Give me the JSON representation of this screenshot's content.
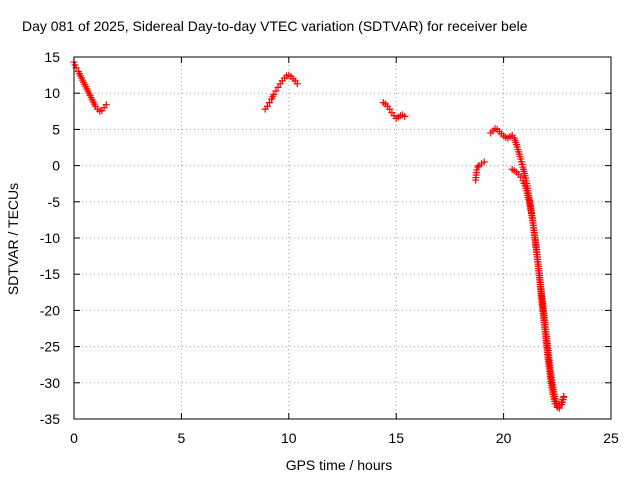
{
  "chart_data": {
    "type": "scatter",
    "title": "Day 081 of 2025, Sidereal Day-to-day VTEC variation (SDTVAR) for receiver bele",
    "xlabel": "GPS time / hours",
    "ylabel": "SDTVAR / TECUs",
    "xlim": [
      0,
      25
    ],
    "ylim": [
      -35,
      15
    ],
    "xticks": [
      0,
      5,
      10,
      15,
      20,
      25
    ],
    "yticks": [
      -35,
      -30,
      -25,
      -20,
      -15,
      -10,
      -5,
      0,
      5,
      10,
      15
    ],
    "grid": true,
    "marker": "plus",
    "colors": {
      "series": "#ff0000",
      "grid": "#a0a0a0",
      "axis": "#000000"
    },
    "series": [
      {
        "name": "SDTVAR",
        "segments": [
          [
            [
              0.0,
              14.3
            ],
            [
              0.05,
              13.9
            ],
            [
              0.1,
              13.5
            ],
            [
              0.2,
              13.0
            ],
            [
              0.3,
              12.4
            ],
            [
              0.4,
              11.8
            ],
            [
              0.5,
              11.2
            ],
            [
              0.6,
              10.6
            ],
            [
              0.7,
              10.0
            ],
            [
              0.8,
              9.4
            ],
            [
              0.9,
              8.8
            ],
            [
              1.0,
              8.2
            ],
            [
              1.1,
              7.8
            ],
            [
              1.2,
              7.5
            ],
            [
              1.3,
              7.6
            ],
            [
              1.4,
              8.0
            ],
            [
              1.5,
              8.4
            ]
          ],
          [
            [
              8.9,
              7.8
            ],
            [
              9.0,
              8.2
            ],
            [
              9.1,
              8.7
            ],
            [
              9.2,
              9.2
            ],
            [
              9.3,
              9.8
            ],
            [
              9.4,
              10.3
            ],
            [
              9.5,
              10.8
            ],
            [
              9.6,
              11.3
            ],
            [
              9.7,
              11.7
            ],
            [
              9.8,
              12.1
            ],
            [
              9.9,
              12.4
            ],
            [
              10.0,
              12.5
            ],
            [
              10.1,
              12.3
            ],
            [
              10.2,
              12.0
            ],
            [
              10.3,
              11.7
            ],
            [
              10.4,
              11.3
            ]
          ],
          [
            [
              14.4,
              8.7
            ],
            [
              14.5,
              8.5
            ],
            [
              14.6,
              8.2
            ],
            [
              14.7,
              7.8
            ],
            [
              14.8,
              7.3
            ],
            [
              14.9,
              6.9
            ],
            [
              15.0,
              6.5
            ],
            [
              15.1,
              6.7
            ],
            [
              15.2,
              6.9
            ],
            [
              15.3,
              7.0
            ],
            [
              15.4,
              6.8
            ]
          ],
          [
            [
              18.7,
              -2.0
            ],
            [
              18.72,
              -1.3
            ],
            [
              18.75,
              -0.6
            ],
            [
              18.8,
              -0.2
            ],
            [
              18.85,
              0.0
            ],
            [
              19.1,
              0.5
            ]
          ],
          [
            [
              19.4,
              4.5
            ],
            [
              19.5,
              4.8
            ],
            [
              19.6,
              5.1
            ],
            [
              19.7,
              5.0
            ],
            [
              19.8,
              4.7
            ],
            [
              19.9,
              4.4
            ],
            [
              20.0,
              4.1
            ],
            [
              20.1,
              3.9
            ],
            [
              20.2,
              3.8
            ],
            [
              20.3,
              4.0
            ],
            [
              20.4,
              4.2
            ],
            [
              20.5,
              3.8
            ],
            [
              20.6,
              2.9
            ],
            [
              20.7,
              1.9
            ],
            [
              20.8,
              0.9
            ],
            [
              20.9,
              -0.2
            ],
            [
              21.0,
              -1.4
            ],
            [
              21.1,
              -2.8
            ],
            [
              21.2,
              -4.5
            ],
            [
              21.3,
              -6.5
            ],
            [
              21.4,
              -8.6
            ],
            [
              21.5,
              -10.9
            ],
            [
              21.6,
              -13.3
            ],
            [
              21.7,
              -15.8
            ],
            [
              21.8,
              -18.4
            ],
            [
              21.9,
              -21.0
            ],
            [
              22.0,
              -23.6
            ],
            [
              22.1,
              -26.2
            ],
            [
              22.2,
              -28.6
            ],
            [
              22.3,
              -30.6
            ],
            [
              22.4,
              -32.2
            ],
            [
              22.5,
              -33.2
            ],
            [
              22.6,
              -33.5
            ],
            [
              22.7,
              -33.0
            ],
            [
              22.8,
              -32.0
            ]
          ],
          [
            [
              20.4,
              -0.5
            ],
            [
              20.5,
              -0.7
            ],
            [
              20.6,
              -0.9
            ],
            [
              20.7,
              -1.2
            ],
            [
              20.8,
              -1.6
            ],
            [
              20.9,
              -2.1
            ],
            [
              21.0,
              -2.8
            ],
            [
              21.1,
              -3.8
            ],
            [
              21.2,
              -5.0
            ],
            [
              21.3,
              -6.6
            ],
            [
              21.4,
              -8.6
            ],
            [
              21.5,
              -11.0
            ],
            [
              21.6,
              -13.6
            ],
            [
              21.7,
              -16.4
            ],
            [
              21.8,
              -19.2
            ],
            [
              21.9,
              -22.0
            ],
            [
              22.0,
              -24.8
            ],
            [
              22.1,
              -27.4
            ],
            [
              22.2,
              -29.8
            ],
            [
              22.3,
              -31.6
            ],
            [
              22.4,
              -32.9
            ],
            [
              22.5,
              -33.4
            ],
            [
              22.6,
              -33.2
            ],
            [
              22.7,
              -32.7
            ],
            [
              22.8,
              -31.9
            ]
          ]
        ]
      }
    ]
  }
}
